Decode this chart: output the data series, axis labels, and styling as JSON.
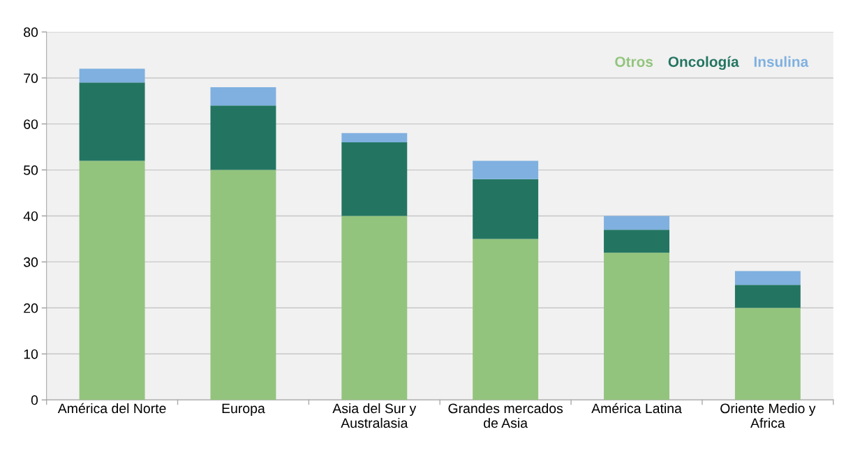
{
  "chart_data": {
    "type": "bar",
    "stacked": true,
    "categories": [
      "América del Norte",
      "Europa",
      "Asia del Sur y\nAustralasia",
      "Grandes mercados\nde Asia",
      "América Latina",
      "Oriente Medio y\nAfrica"
    ],
    "series": [
      {
        "name": "Otros",
        "color": "#93c47d",
        "values": [
          52,
          50,
          40,
          35,
          32,
          20
        ]
      },
      {
        "name": "Oncología",
        "color": "#237561",
        "values": [
          17,
          14,
          16,
          13,
          5,
          5
        ]
      },
      {
        "name": "Insulina",
        "color": "#7fb0e0",
        "values": [
          3,
          4,
          2,
          4,
          3,
          3
        ]
      }
    ],
    "ylim": [
      0,
      80
    ],
    "yticks": [
      0,
      10,
      20,
      30,
      40,
      50,
      60,
      70,
      80
    ],
    "grid": "y",
    "legend": "top right"
  }
}
